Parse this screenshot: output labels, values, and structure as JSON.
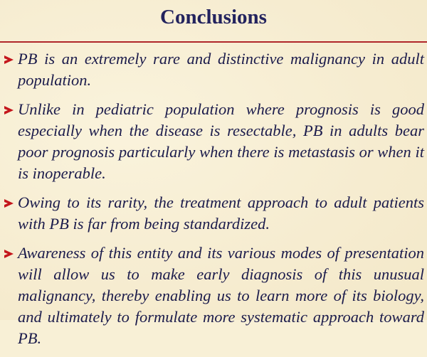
{
  "slide": {
    "title": "Conclusions",
    "bullets": [
      "PB is an extremely rare and distinctive malignancy in adult population.",
      "Unlike in pediatric population where prognosis is good especially when the disease is resectable, PB in adults bear poor prognosis particularly when there is metastasis or when it is inoperable.",
      "Owing to its rarity, the treatment approach to adult patients with PB is far from being standardized.",
      "Awareness of this entity and its various modes of presentation will allow us to make early diagnosis of this unusual malignancy, thereby enabling us to learn more of its biology, and ultimately to formulate more systematic approach toward PB."
    ],
    "colors": {
      "title": "#23235e",
      "rule": "#b0262a",
      "bullet": "#c4161c",
      "text": "#1c1c4c",
      "background": "#f8f0d6"
    }
  }
}
